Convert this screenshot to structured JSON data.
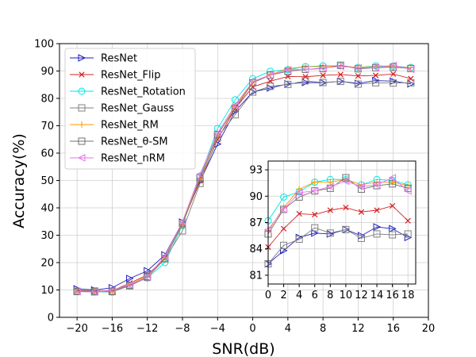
{
  "chart_data": {
    "type": "line",
    "xlabel": "SNR(dB)",
    "ylabel": "Accuracy(%)",
    "xlim": [
      -22,
      20
    ],
    "ylim": [
      0,
      100
    ],
    "xticks": [
      -20,
      -16,
      -12,
      -8,
      -4,
      0,
      4,
      8,
      12,
      16,
      20
    ],
    "yticks": [
      0,
      10,
      20,
      30,
      40,
      50,
      60,
      70,
      80,
      90,
      100
    ],
    "grid": true,
    "legend_position": "upper-left",
    "x": [
      -20,
      -18,
      -16,
      -14,
      -12,
      -10,
      -8,
      -6,
      -4,
      -2,
      0,
      2,
      4,
      6,
      8,
      10,
      12,
      14,
      16,
      18
    ],
    "series": [
      {
        "name": "ResNet",
        "color": "#1f1fbf",
        "marker": "triangle-right",
        "values": [
          10.4,
          10.0,
          10.8,
          14.2,
          17.0,
          22.8,
          34.8,
          49.6,
          63.3,
          75.3,
          82.3,
          83.8,
          85.3,
          85.8,
          85.7,
          86.2,
          85.5,
          86.5,
          86.3,
          85.3
        ]
      },
      {
        "name": "ResNet_Flip",
        "color": "#d62020",
        "marker": "x",
        "values": [
          9.8,
          9.6,
          9.7,
          12.5,
          15.5,
          21.6,
          34.2,
          50.0,
          65.0,
          76.3,
          84.2,
          86.3,
          88.0,
          87.9,
          88.4,
          88.7,
          88.2,
          88.4,
          88.9,
          87.2
        ]
      },
      {
        "name": "ResNet_Rotation",
        "color": "#00e5e5",
        "marker": "circle",
        "values": [
          9.6,
          9.4,
          9.2,
          11.8,
          14.4,
          20.0,
          33.6,
          51.5,
          69.0,
          79.5,
          87.2,
          89.9,
          90.5,
          91.6,
          91.9,
          91.9,
          91.3,
          91.9,
          91.8,
          91.3
        ]
      },
      {
        "name": "ResNet_Gauss",
        "color": "#808080",
        "marker": "square",
        "values": [
          9.4,
          9.3,
          9.4,
          11.5,
          14.6,
          21.4,
          31.6,
          48.9,
          65.8,
          74.0,
          82.3,
          84.4,
          85.1,
          86.4,
          85.8,
          86.2,
          85.2,
          85.7,
          85.6,
          85.7
        ]
      },
      {
        "name": "ResNet_RM",
        "color": "#ff9900",
        "marker": "plus",
        "values": [
          9.4,
          9.5,
          9.3,
          12.0,
          15.2,
          21.7,
          34.0,
          50.7,
          66.5,
          77.0,
          86.0,
          88.7,
          90.8,
          91.6,
          91.6,
          91.9,
          91.3,
          91.6,
          91.6,
          91.2
        ]
      },
      {
        "name": "ResNet_θ-SM",
        "color": "#707070",
        "marker": "square",
        "values": [
          9.5,
          9.6,
          9.6,
          11.7,
          14.9,
          21.5,
          34.4,
          51.0,
          66.8,
          76.4,
          85.7,
          88.5,
          89.9,
          90.6,
          90.9,
          92.1,
          90.8,
          91.2,
          91.4,
          90.9
        ]
      },
      {
        "name": "ResNet_nRM",
        "color": "#e676e6",
        "marker": "triangle-left",
        "values": [
          9.4,
          9.3,
          9.9,
          11.9,
          14.7,
          22.4,
          34.9,
          52.3,
          67.3,
          77.5,
          86.2,
          88.5,
          90.4,
          90.6,
          91.1,
          91.7,
          91.1,
          91.3,
          92.1,
          90.6
        ]
      }
    ],
    "inset": {
      "xlim": [
        0,
        19
      ],
      "ylim": [
        80,
        94
      ],
      "xticks": [
        0,
        2,
        4,
        6,
        8,
        10,
        12,
        14,
        16,
        18
      ],
      "yticks": [
        81,
        84,
        87,
        90,
        93
      ],
      "grid": true
    }
  }
}
